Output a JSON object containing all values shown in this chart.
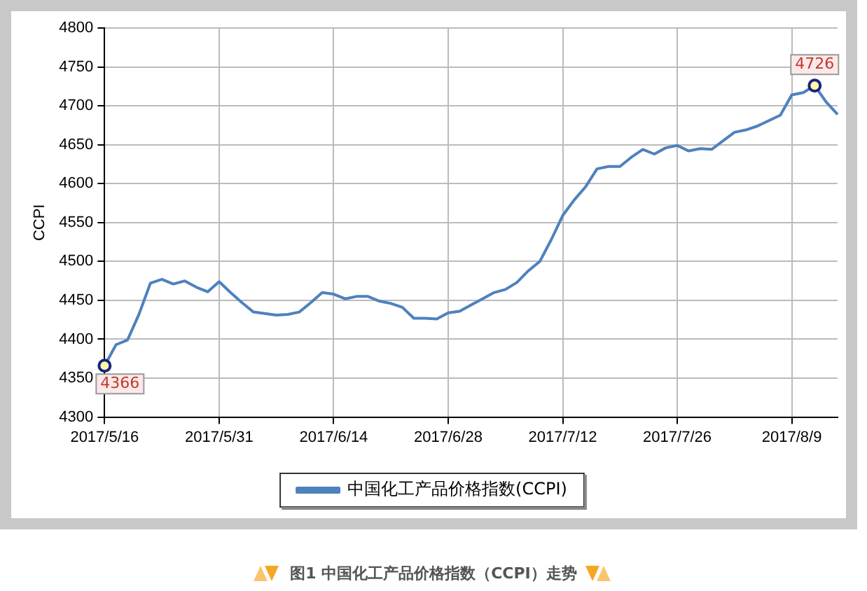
{
  "chart_data": {
    "type": "line",
    "title": "图1 中国化工产品价格指数（CCPI）走势",
    "ylabel": "CCPI",
    "categories": [
      "2017/5/16",
      null,
      null,
      null,
      null,
      null,
      null,
      null,
      null,
      null,
      "2017/5/31",
      null,
      null,
      null,
      null,
      null,
      null,
      null,
      null,
      null,
      "2017/6/14",
      null,
      null,
      null,
      null,
      null,
      null,
      null,
      null,
      null,
      "2017/6/28",
      null,
      null,
      null,
      null,
      null,
      null,
      null,
      null,
      null,
      "2017/7/12",
      null,
      null,
      null,
      null,
      null,
      null,
      null,
      null,
      null,
      "2017/7/26",
      null,
      null,
      null,
      null,
      null,
      null,
      null,
      null,
      null,
      "2017/8/9",
      null,
      null,
      null,
      null
    ],
    "series": [
      {
        "name": "中国化工产品价格指数(CCPI)",
        "color": "#4f81bd",
        "values": [
          4366,
          4393,
          4399,
          4432,
          4472,
          4477,
          4471,
          4475,
          4467,
          4461,
          4474,
          4460,
          4447,
          4435,
          4433,
          4431,
          4432,
          4435,
          4447,
          4460,
          4458,
          4452,
          4455,
          4455,
          4449,
          4446,
          4441,
          4427,
          4427,
          4426,
          4434,
          4436,
          4444,
          4452,
          4460,
          4464,
          4473,
          4488,
          4500,
          4528,
          4559,
          4579,
          4596,
          4619,
          4622,
          4622,
          4634,
          4644,
          4638,
          4646,
          4649,
          4642,
          4645,
          4644,
          4655,
          4666,
          4669,
          4674,
          4681,
          4688,
          4714,
          4717,
          4726,
          4705,
          4689
        ],
        "value_labels": [
          "4366",
          null,
          null,
          null,
          null,
          null,
          null,
          null,
          null,
          null,
          null,
          null,
          null,
          null,
          null,
          null,
          null,
          null,
          null,
          null,
          null,
          null,
          null,
          null,
          null,
          null,
          null,
          null,
          null,
          null,
          null,
          null,
          null,
          null,
          null,
          null,
          null,
          null,
          null,
          null,
          null,
          null,
          null,
          null,
          null,
          null,
          null,
          null,
          null,
          null,
          null,
          null,
          null,
          null,
          null,
          null,
          null,
          null,
          null,
          null,
          null,
          null,
          "4726",
          null,
          null
        ]
      }
    ],
    "ylim": [
      4300,
      4800
    ],
    "yticks": [
      4300,
      4350,
      4400,
      4450,
      4500,
      4550,
      4600,
      4650,
      4700,
      4750,
      4800
    ],
    "grid": true,
    "legend": "bottom"
  }
}
